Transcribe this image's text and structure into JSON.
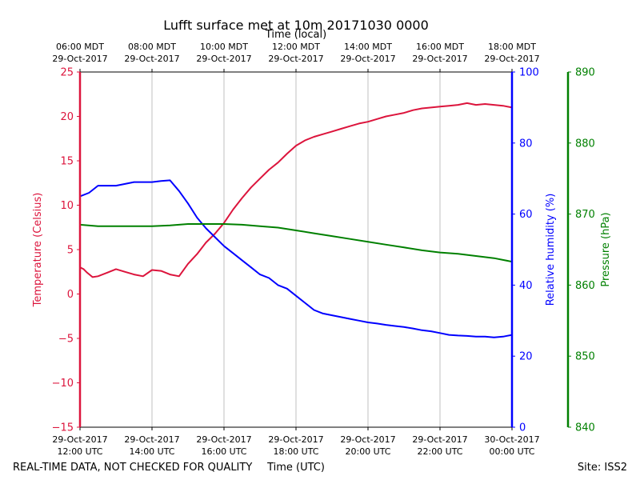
{
  "chart_data": {
    "type": "line",
    "title": "Lufft surface met at 10m 20171030 0000",
    "top_axis_label": "Time (local)",
    "xlabel": "Time (UTC)",
    "footer_left": "REAL-TIME DATA, NOT CHECKED FOR QUALITY",
    "footer_right": "Site: ISS2",
    "x_range_hours_utc": [
      12,
      24
    ],
    "x_ticks": [
      {
        "h": 12,
        "bottom": [
          "29-Oct-2017",
          "12:00 UTC"
        ],
        "top": [
          "06:00 MDT",
          "29-Oct-2017"
        ]
      },
      {
        "h": 14,
        "bottom": [
          "29-Oct-2017",
          "14:00 UTC"
        ],
        "top": [
          "08:00 MDT",
          "29-Oct-2017"
        ]
      },
      {
        "h": 16,
        "bottom": [
          "29-Oct-2017",
          "16:00 UTC"
        ],
        "top": [
          "10:00 MDT",
          "29-Oct-2017"
        ]
      },
      {
        "h": 18,
        "bottom": [
          "29-Oct-2017",
          "18:00 UTC"
        ],
        "top": [
          "12:00 MDT",
          "29-Oct-2017"
        ]
      },
      {
        "h": 20,
        "bottom": [
          "29-Oct-2017",
          "20:00 UTC"
        ],
        "top": [
          "14:00 MDT",
          "29-Oct-2017"
        ]
      },
      {
        "h": 22,
        "bottom": [
          "29-Oct-2017",
          "22:00 UTC"
        ],
        "top": [
          "16:00 MDT",
          "29-Oct-2017"
        ]
      },
      {
        "h": 24,
        "bottom": [
          "30-Oct-2017",
          "00:00 UTC"
        ],
        "top": [
          "18:00 MDT",
          "29-Oct-2017"
        ]
      }
    ],
    "axes": {
      "temperature": {
        "label": "Temperature (Celsius)",
        "range": [
          -15,
          25
        ],
        "ticks": [
          "25",
          "20",
          "15",
          "10",
          "5",
          "0",
          "−5",
          "−10",
          "−15"
        ],
        "tick_values": [
          25,
          20,
          15,
          10,
          5,
          0,
          -5,
          -10,
          -15
        ],
        "color": "#dc143c"
      },
      "humidity": {
        "label": "Relative humidity (%)",
        "range": [
          0,
          100
        ],
        "ticks": [
          "100",
          "80",
          "60",
          "40",
          "20",
          "0"
        ],
        "tick_values": [
          100,
          80,
          60,
          40,
          20,
          0
        ],
        "color": "#0000ff"
      },
      "pressure": {
        "label": "Pressure (hPa)",
        "range": [
          840,
          890
        ],
        "ticks": [
          "890",
          "880",
          "870",
          "860",
          "850",
          "840"
        ],
        "tick_values": [
          890,
          880,
          870,
          860,
          850,
          840
        ],
        "color": "#008000"
      }
    },
    "series": [
      {
        "name": "Temperature",
        "axis": "temperature",
        "color": "#dc143c",
        "x": [
          12.0,
          12.1,
          12.2,
          12.35,
          12.5,
          12.75,
          13.0,
          13.25,
          13.5,
          13.75,
          14.0,
          14.25,
          14.5,
          14.75,
          15.0,
          15.25,
          15.5,
          15.75,
          16.0,
          16.25,
          16.5,
          16.75,
          17.0,
          17.25,
          17.5,
          17.75,
          18.0,
          18.25,
          18.5,
          18.75,
          19.0,
          19.25,
          19.5,
          19.75,
          20.0,
          20.25,
          20.5,
          20.75,
          21.0,
          21.25,
          21.5,
          21.75,
          22.0,
          22.25,
          22.5,
          22.75,
          23.0,
          23.25,
          23.5,
          23.75,
          24.0
        ],
        "values": [
          3.0,
          2.8,
          2.4,
          1.9,
          2.0,
          2.4,
          2.8,
          2.5,
          2.2,
          2.0,
          2.7,
          2.6,
          2.2,
          2.0,
          3.4,
          4.5,
          5.8,
          6.8,
          8.0,
          9.5,
          10.8,
          12.0,
          13.0,
          14.0,
          14.8,
          15.8,
          16.7,
          17.3,
          17.7,
          18.0,
          18.3,
          18.6,
          18.9,
          19.2,
          19.4,
          19.7,
          20.0,
          20.2,
          20.4,
          20.7,
          20.9,
          21.0,
          21.1,
          21.2,
          21.3,
          21.5,
          21.3,
          21.4,
          21.3,
          21.2,
          21.0
        ]
      },
      {
        "name": "Relative humidity",
        "axis": "humidity",
        "color": "#0000ff",
        "x": [
          12.0,
          12.25,
          12.5,
          12.75,
          13.0,
          13.25,
          13.5,
          13.75,
          14.0,
          14.25,
          14.5,
          14.75,
          15.0,
          15.25,
          15.5,
          15.75,
          16.0,
          16.25,
          16.5,
          16.75,
          17.0,
          17.25,
          17.5,
          17.75,
          18.0,
          18.25,
          18.5,
          18.75,
          19.0,
          19.25,
          19.5,
          19.75,
          20.0,
          20.25,
          20.5,
          20.75,
          21.0,
          21.25,
          21.5,
          21.75,
          22.0,
          22.25,
          22.5,
          22.75,
          23.0,
          23.25,
          23.5,
          23.75,
          24.0
        ],
        "values": [
          65,
          66,
          68,
          68,
          68,
          68.5,
          69,
          69,
          69,
          69.3,
          69.5,
          66.5,
          63,
          59,
          56,
          53.5,
          51,
          49,
          47,
          45,
          43,
          42,
          40,
          39,
          37,
          35,
          33,
          32,
          31.5,
          31,
          30.5,
          30,
          29.5,
          29.2,
          28.8,
          28.5,
          28.2,
          27.8,
          27.3,
          27,
          26.5,
          26,
          25.8,
          25.7,
          25.5,
          25.5,
          25.3,
          25.5,
          26
        ]
      },
      {
        "name": "Pressure",
        "axis": "pressure",
        "color": "#008000",
        "x": [
          12.0,
          12.5,
          13.0,
          13.5,
          14.0,
          14.5,
          15.0,
          15.5,
          16.0,
          16.5,
          17.0,
          17.5,
          18.0,
          18.5,
          19.0,
          19.5,
          20.0,
          20.5,
          21.0,
          21.5,
          22.0,
          22.5,
          23.0,
          23.5,
          24.0
        ],
        "values": [
          868.5,
          868.3,
          868.3,
          868.3,
          868.3,
          868.4,
          868.6,
          868.6,
          868.6,
          868.5,
          868.3,
          868.1,
          867.7,
          867.3,
          866.9,
          866.5,
          866.1,
          865.7,
          865.3,
          864.9,
          864.6,
          864.4,
          864.1,
          863.8,
          863.3
        ]
      }
    ]
  }
}
